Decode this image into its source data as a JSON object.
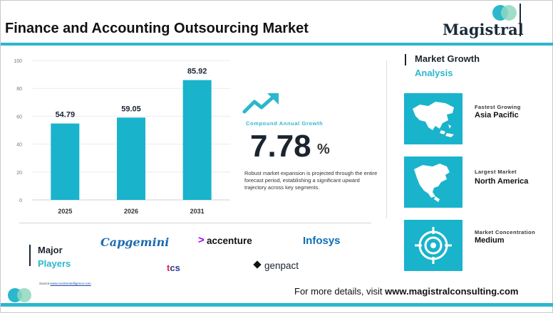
{
  "header": {
    "title": "Finance and Accounting Outsourcing Market",
    "logo_text": "Magistral"
  },
  "chart_data": {
    "type": "bar",
    "categories": [
      "2025",
      "2026",
      "2031"
    ],
    "values": [
      54.79,
      59.05,
      85.92
    ],
    "data_labels": [
      "54.79",
      "59.05",
      "85.92"
    ],
    "ylim": [
      0,
      100
    ],
    "y_ticks": [
      "0",
      "20",
      "40",
      "60",
      "80",
      "100"
    ],
    "y_tick_values": [
      0,
      20,
      40,
      60,
      80,
      100
    ],
    "bar_color": "#19b3cc",
    "grid": true,
    "title": "",
    "xlabel": "",
    "ylabel": ""
  },
  "cagr": {
    "icon": "trend-up-arrow-icon",
    "label": "Compound Annual Growth",
    "value": "7.78",
    "unit": "%",
    "description": "Robust market expansion is projected through the entire forecast period, establishing a significant upward trajectory across key segments."
  },
  "growth_analysis": {
    "title_line1": "Market Growth",
    "title_line2": "Analysis",
    "cards": [
      {
        "label": "Fastest Growing",
        "value": "Asia Pacific",
        "icon": "asia-map-icon"
      },
      {
        "label": "Largest Market",
        "value": "North America",
        "icon": "north-america-map-icon"
      },
      {
        "label": "Market Concentration",
        "value": "Medium",
        "icon": "target-icon"
      }
    ]
  },
  "players": {
    "title_line1": "Major",
    "title_line2": "Players",
    "brands": [
      "Capgemini",
      "accenture",
      "Infosys",
      "tcs",
      "genpact"
    ]
  },
  "source": {
    "prefix": "Source:",
    "link": "www.mordorintelligence.com"
  },
  "footer": {
    "text": "For more details, visit ",
    "link": "www.magistralconsulting.com"
  },
  "colors": {
    "accent": "#2bb7cc",
    "dark": "#1b2530"
  }
}
